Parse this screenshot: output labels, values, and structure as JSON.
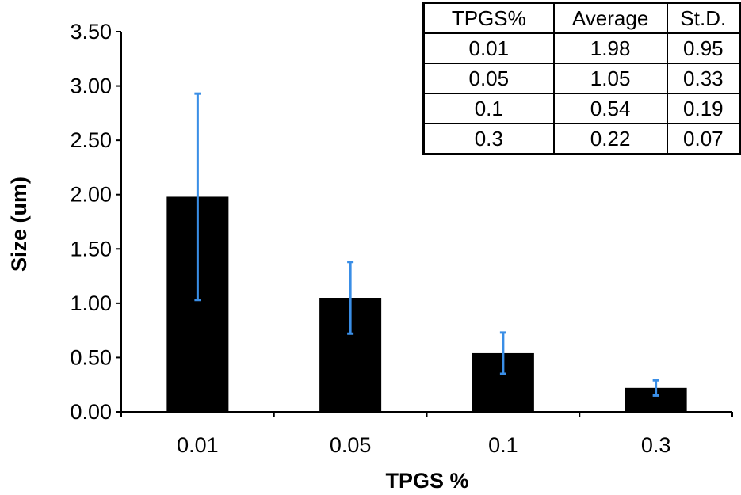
{
  "chart_data": {
    "type": "bar",
    "categories": [
      "0.01",
      "0.05",
      "0.1",
      "0.3"
    ],
    "values": [
      1.98,
      1.05,
      0.54,
      0.22
    ],
    "error": [
      0.95,
      0.33,
      0.19,
      0.07
    ],
    "title": "",
    "xlabel": "TPGS %",
    "ylabel": "Size (um)",
    "ylim": [
      0,
      3.5
    ],
    "yticks": [
      "0.00",
      "0.50",
      "1.00",
      "1.50",
      "2.00",
      "2.50",
      "3.00",
      "3.50"
    ],
    "grid": false,
    "bar_color": "#000000",
    "error_bar_color": "#3a8ee6",
    "table": {
      "headers": [
        "TPGS%",
        "Average",
        "St.D."
      ],
      "rows": [
        [
          "0.01",
          "1.98",
          "0.95"
        ],
        [
          "0.05",
          "1.05",
          "0.33"
        ],
        [
          "0.1",
          "0.54",
          "0.19"
        ],
        [
          "0.3",
          "0.22",
          "0.07"
        ]
      ]
    }
  }
}
